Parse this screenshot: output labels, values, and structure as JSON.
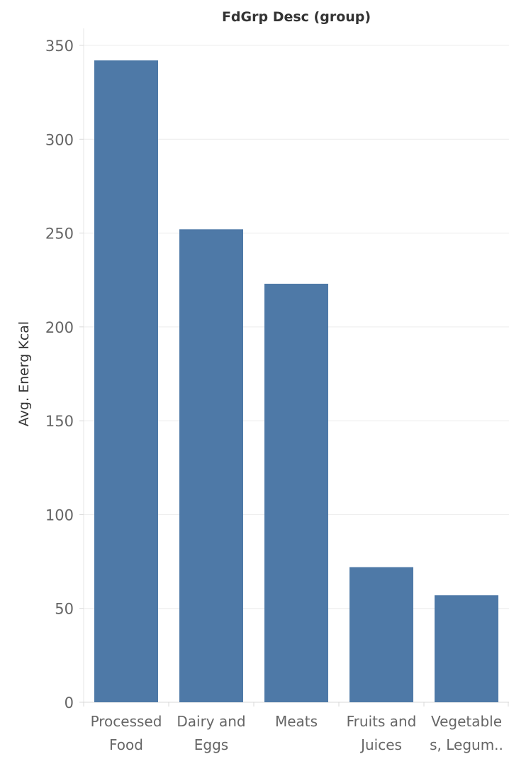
{
  "chart_data": {
    "type": "bar",
    "title": "FdGrp Desc (group)",
    "xlabel": "",
    "ylabel": "Avg. Energ Kcal",
    "categories": [
      [
        "Processed",
        "Food"
      ],
      [
        "Dairy and",
        "Eggs"
      ],
      [
        "Meats"
      ],
      [
        "Fruits and",
        "Juices"
      ],
      [
        "Vegetable",
        "s, Legum.."
      ]
    ],
    "values": [
      342,
      252,
      223,
      72,
      57
    ],
    "ylim": [
      0,
      350
    ],
    "yticks": [
      0,
      50,
      100,
      150,
      200,
      250,
      300,
      350
    ],
    "grid": true,
    "legend": "none",
    "bar_color": "#4e79a7"
  }
}
